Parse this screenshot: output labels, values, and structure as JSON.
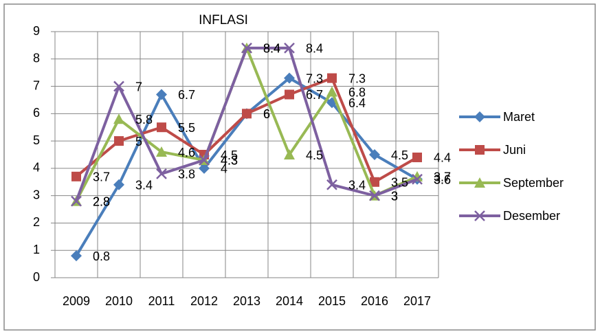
{
  "chart_data": {
    "type": "line",
    "title": "INFLASI",
    "categories": [
      "2009",
      "2010",
      "2011",
      "2012",
      "2013",
      "2014",
      "2015",
      "2016",
      "2017"
    ],
    "series": [
      {
        "name": "Maret",
        "color": "#4a7ebb",
        "marker": "diamond",
        "values": [
          0.8,
          3.4,
          6.7,
          4,
          6,
          7.3,
          6.4,
          4.5,
          3.6
        ]
      },
      {
        "name": "Juni",
        "color": "#be4b48",
        "marker": "square",
        "values": [
          3.7,
          5,
          5.5,
          4.5,
          6,
          6.7,
          7.3,
          3.5,
          4.4
        ]
      },
      {
        "name": "September",
        "color": "#98b954",
        "marker": "triangle",
        "values": [
          2.8,
          5.8,
          4.6,
          4.3,
          8.4,
          4.5,
          6.8,
          3,
          3.7
        ]
      },
      {
        "name": "Desember",
        "color": "#7d60a0",
        "marker": "x",
        "values": [
          2.8,
          7,
          3.8,
          4.3,
          8.4,
          8.4,
          3.4,
          3,
          3.6
        ]
      }
    ],
    "ylim": [
      0,
      9
    ],
    "yticks": [
      0,
      1,
      2,
      3,
      4,
      5,
      6,
      7,
      8,
      9
    ],
    "grid": true,
    "legend": "right"
  }
}
